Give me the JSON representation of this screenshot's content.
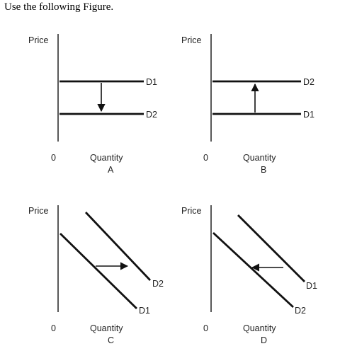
{
  "heading": "Use the following Figure.",
  "colors": {
    "ink": "#111111",
    "text": "#222222"
  },
  "panels": [
    {
      "id": "A",
      "y_axis_label": "Price",
      "origin_label": "0",
      "x_axis_label": "Quantity",
      "panel_letter": "A",
      "line_labels": [
        "D1",
        "D2"
      ],
      "shift": "down"
    },
    {
      "id": "B",
      "y_axis_label": "Price",
      "origin_label": "0",
      "x_axis_label": "Quantity",
      "panel_letter": "B",
      "line_labels": [
        "D2",
        "D1"
      ],
      "shift": "up"
    },
    {
      "id": "C",
      "y_axis_label": "Price",
      "origin_label": "0",
      "x_axis_label": "Quantity",
      "panel_letter": "C",
      "line_labels": [
        "D2",
        "D1"
      ],
      "shift": "right"
    },
    {
      "id": "D",
      "y_axis_label": "Price",
      "origin_label": "0",
      "x_axis_label": "Quantity",
      "panel_letter": "D",
      "line_labels": [
        "D1",
        "D2"
      ],
      "shift": "left"
    }
  ]
}
